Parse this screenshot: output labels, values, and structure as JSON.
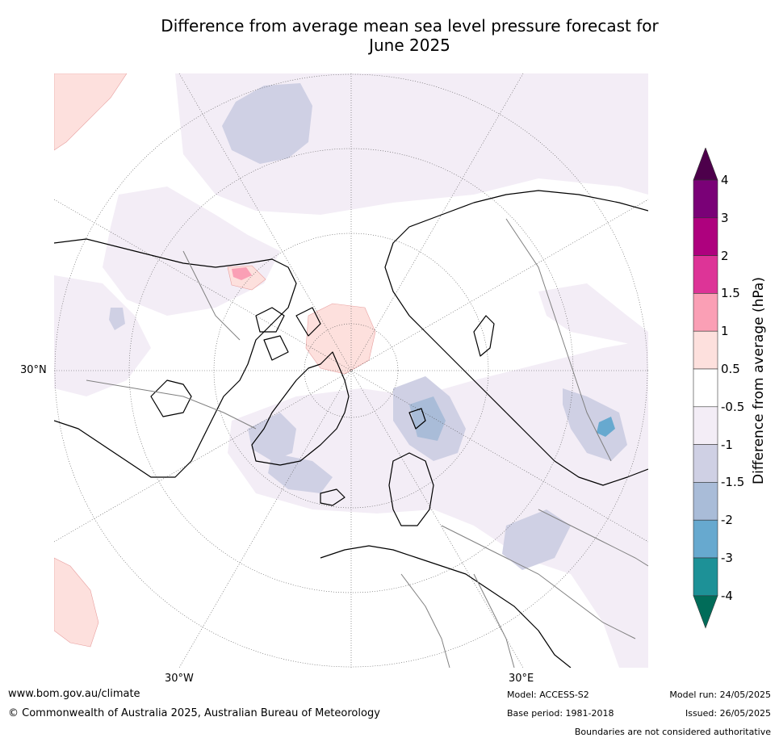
{
  "title": {
    "line1": "Difference from average mean sea level pressure forecast for",
    "line2": "June 2025"
  },
  "map": {
    "projection": "north-polar-stereographic",
    "lat_labels": [
      "30°N"
    ],
    "lon_labels": [
      "30°W",
      "30°E"
    ],
    "colors": {
      "land": "#000000",
      "borders": "#808080",
      "grid": "#555555",
      "anom_neg_0_5_1": "#f3edf6",
      "anom_neg_1_1_5": "#cfd0e4",
      "anom_neg_1_5_2": "#a9bcd8",
      "anom_neg_2_3": "#67a9cf",
      "anom_pos_0_5_1": "#fde0dd",
      "anom_pos_1_1_5": "#fa9fb5"
    }
  },
  "colorbar": {
    "label": "Difference from average (hPa)",
    "ticks": [
      "4",
      "3",
      "2",
      "1.5",
      "1",
      "0.5",
      "-0.5",
      "-1",
      "-1.5",
      "-2",
      "-3",
      "-4"
    ],
    "colors": [
      "#4d004b",
      "#7a0177",
      "#ae017e",
      "#dd3497",
      "#fa9fb5",
      "#fde0dd",
      "#ffffff",
      "#f3edf6",
      "#cfd0e4",
      "#a9bcd8",
      "#67a9cf",
      "#1d9197",
      "#016c59"
    ]
  },
  "footer": {
    "website": "www.bom.gov.au/climate",
    "copyright": "© Commonwealth of Australia 2025, Australian Bureau of Meteorology",
    "model": "Model: ACCESS-S2",
    "base_period": "Base period: 1981-2018",
    "model_run": "Model run: 24/05/2025",
    "issued": "Issued: 26/05/2025",
    "disclaimer": "Boundaries are not considered authoritative"
  }
}
